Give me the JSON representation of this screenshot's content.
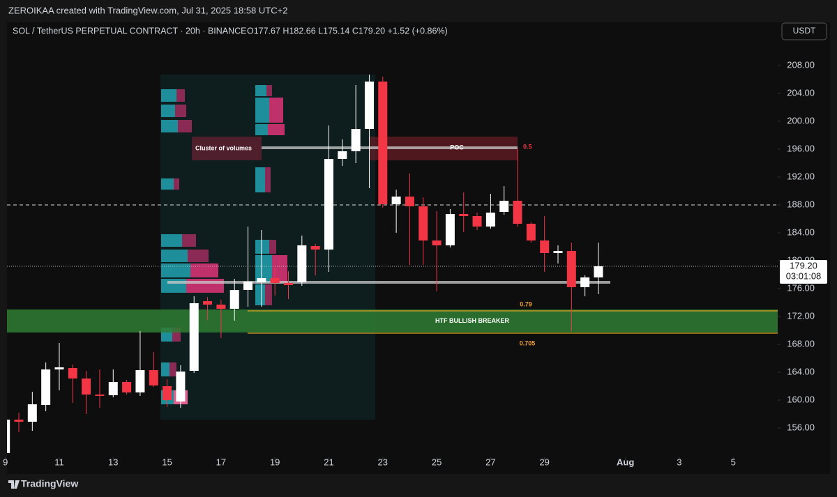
{
  "header": {
    "attribution": "ZEROIKAA created with TradingView.com, Jul 31, 2025 18:58 UTC+2",
    "footer": "TradingView"
  },
  "chart_data": {
    "type": "candlestick",
    "title": "SOL / TetherUS PERPETUAL CONTRACT · 20h · BINANCE",
    "ohlc_legend": "O177.67 H182.66 L175.14 C179.20 +1.52 (+0.86%)",
    "currency": "USDT",
    "x": [
      9,
      9.5,
      10,
      10.5,
      11,
      11.5,
      12,
      12.5,
      13,
      13.5,
      14,
      14.5,
      15,
      15.5,
      16,
      16.5,
      17,
      17.5,
      18,
      18.5,
      19,
      19.5,
      20,
      20.5,
      21,
      21.5,
      22,
      22.5,
      23,
      23.5,
      24,
      24.5,
      25,
      25.5,
      26,
      26.5,
      27,
      27.5,
      28,
      28.5,
      29,
      29.5,
      30,
      30.5,
      31
    ],
    "open": [
      152.4,
      157.2,
      156.9,
      159.3,
      164.4,
      164.6,
      163.1,
      160.8,
      160.7,
      162.6,
      161.1,
      164.3,
      162,
      159.8,
      164.2,
      174.2,
      173.7,
      173.1,
      175.8,
      176.9,
      177.5,
      176.8,
      176.9,
      182.1,
      181.6,
      194.6,
      195.7,
      198.9,
      205.7,
      188.1,
      189.2,
      187.8,
      182.9,
      182.2,
      186.7,
      186.4,
      184.9,
      187,
      188.6,
      185.3,
      182.9,
      181.1,
      181.4,
      176.2,
      177.6
    ],
    "high": [
      157.5,
      158.2,
      161.2,
      165.4,
      168.2,
      165.1,
      164.2,
      164.4,
      164.4,
      162.9,
      169.9,
      166.9,
      163,
      165,
      174.9,
      174.8,
      174.4,
      177.4,
      184.9,
      184.4,
      179,
      178.5,
      183.6,
      182.4,
      199.4,
      197.4,
      205.2,
      206.7,
      206.4,
      190.2,
      192.5,
      189.1,
      187.1,
      187.4,
      189.8,
      186.9,
      189.6,
      190.7,
      195.9,
      185.5,
      186.4,
      182.2,
      182.6,
      177.9,
      182.6
    ],
    "low": [
      152,
      155.4,
      155.6,
      158.4,
      161.4,
      159.6,
      158,
      158.9,
      160.4,
      160.8,
      160.6,
      161.9,
      159,
      158.9,
      163.9,
      171.5,
      168.9,
      171.4,
      173.4,
      173.4,
      175,
      174.5,
      176.4,
      177.9,
      178.4,
      193.6,
      194,
      190.4,
      187.6,
      184,
      179.4,
      179.4,
      175.6,
      181.9,
      184.1,
      184.4,
      184.6,
      186.6,
      184.9,
      182.6,
      178.4,
      179.6,
      169.9,
      174.9,
      175.2
    ],
    "close": [
      157.2,
      156.9,
      159.4,
      164.4,
      164.7,
      163.1,
      160.8,
      160.6,
      162.6,
      161.1,
      164.3,
      162.1,
      160,
      164.1,
      173.9,
      173.7,
      173.1,
      175.8,
      177,
      177.5,
      176.8,
      176.5,
      182.2,
      181.6,
      194.6,
      195.7,
      198.9,
      205.7,
      188.1,
      189.2,
      187.8,
      182.9,
      182.2,
      186.7,
      186.4,
      184.9,
      186.9,
      188.6,
      185.3,
      182.9,
      181.1,
      181.4,
      176.2,
      177.6,
      179.2
    ],
    "up_color": "#ffffff",
    "down_color": "#f23645",
    "xlim": [
      9.06,
      37.65
    ],
    "xticks": [
      {
        "value": 9,
        "label": "9"
      },
      11,
      13,
      15,
      17,
      19,
      21,
      23,
      25,
      27,
      29,
      {
        "value": 32,
        "label": "Aug"
      },
      {
        "value": 34,
        "label": "3"
      },
      {
        "value": 36,
        "label": "5"
      }
    ],
    "ylim": [
      149.4,
      214.2
    ],
    "yticks": [
      {
        "value": 156,
        "label": "156.00"
      },
      {
        "value": 160,
        "label": "160.00"
      },
      {
        "value": 164,
        "label": "164.00"
      },
      {
        "value": 168,
        "label": "168.00"
      },
      {
        "value": 172,
        "label": "172.00"
      },
      {
        "value": 176,
        "label": "176.00"
      },
      {
        "value": 180,
        "label": "180.00"
      },
      {
        "value": 184,
        "label": "184.00"
      },
      {
        "value": 188,
        "label": "188.00"
      },
      {
        "value": 192,
        "label": "192.00"
      },
      {
        "value": 196,
        "label": "196.00"
      },
      {
        "value": 200,
        "label": "200.00"
      },
      {
        "value": 204,
        "label": "204.00"
      },
      {
        "value": 208,
        "label": "208.00"
      }
    ],
    "last_price": {
      "value": 179.2,
      "label": "179.20",
      "countdown": "03:01:08"
    },
    "dashed_level": 188,
    "breaker_zone": {
      "text": "HTF BULLISH BREAKER",
      "low": 169.7,
      "high": 173.0,
      "color": "#2e7d32"
    },
    "volume_cluster": {
      "text": "Cluster of volumes",
      "low": 194.4,
      "high": 197.8
    },
    "poc_zone": {
      "text": "POC",
      "low": 194.4,
      "high": 197.8
    },
    "fib_levels": [
      {
        "label": "0.5",
        "price": 196.2
      },
      {
        "label": "0.79",
        "price": 172.8
      },
      {
        "label": "0.705",
        "price": 169.6
      }
    ],
    "profile_lines": [
      196.2,
      176.9
    ]
  }
}
